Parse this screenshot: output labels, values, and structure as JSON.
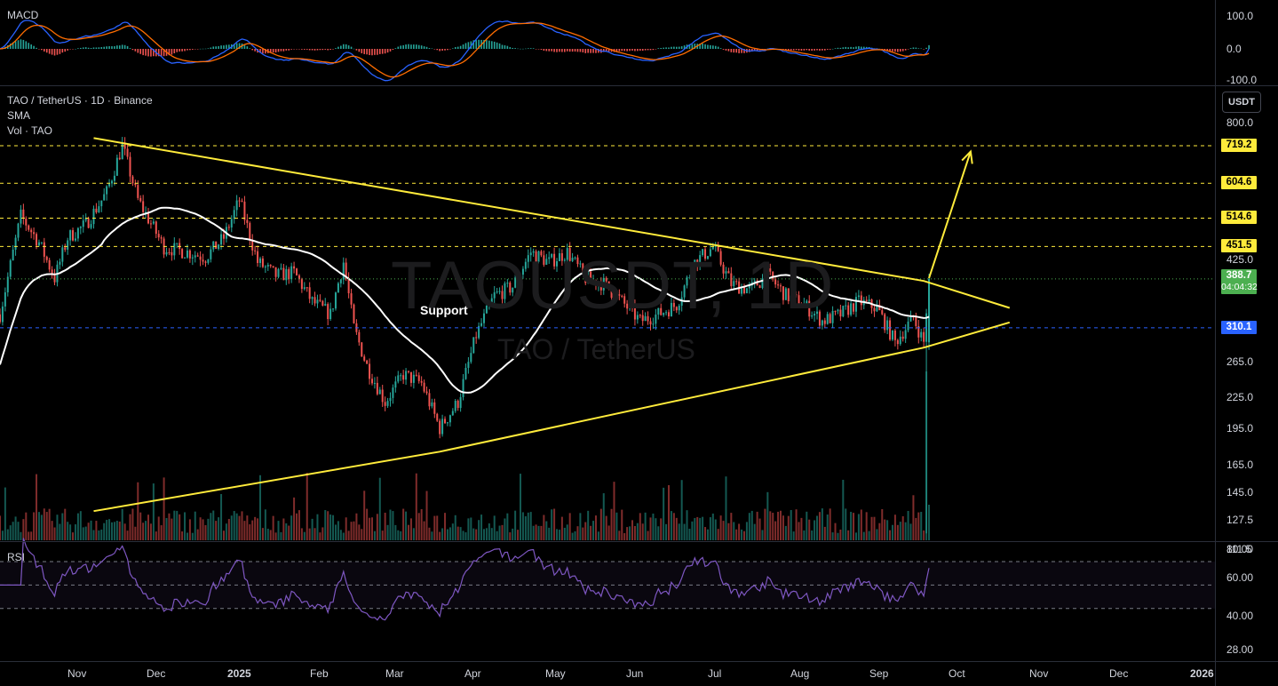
{
  "header": {
    "symbol_line": "TAO / TetherUS · 1D · Binance",
    "indicator_sma": "SMA",
    "indicator_vol": "Vol · TAO",
    "watermark_symbol": "TAOUSDT, 1D",
    "watermark_name": "TAO / TetherUS",
    "currency_button": "USDT"
  },
  "panes": {
    "macd_title": "MACD",
    "rsi_title": "RSI"
  },
  "colors": {
    "up": "#26a69a",
    "down": "#ef5350",
    "trendline": "#ffeb3b",
    "sma": "#ffffff",
    "macd": "#2962ff",
    "signal": "#ff6d00",
    "rsi": "#7e57c2"
  },
  "chart_data": {
    "type": "candlestick",
    "title": "TAO / TetherUS · 1D · Binance",
    "x_ticks": [
      "Nov",
      "Dec",
      "2025",
      "Feb",
      "Mar",
      "Apr",
      "May",
      "Jun",
      "Jul",
      "Aug",
      "Sep",
      "Oct",
      "Nov",
      "Dec",
      "2026"
    ],
    "price_axis": {
      "scale": "log",
      "ticks": [
        "800.0",
        "425.0",
        "265.0",
        "225.0",
        "195.0",
        "165.0",
        "145.0",
        "127.5",
        "111.5"
      ]
    },
    "macd_axis": {
      "ticks": [
        "100.0",
        "0.0",
        "-100.0"
      ]
    },
    "rsi_axis": {
      "ticks": [
        "80.00",
        "60.00",
        "40.00",
        "28.00"
      ]
    },
    "price_levels": [
      {
        "label": "719.2",
        "value": 719.2
      },
      {
        "label": "604.6",
        "value": 604.6
      },
      {
        "label": "514.6",
        "value": 514.6
      },
      {
        "label": "451.5",
        "value": 451.5
      },
      {
        "label": "310.1",
        "value": 310.1
      }
    ],
    "current_price": {
      "label": "388.7",
      "countdown": "04:04:32"
    },
    "annotation_support": "Support",
    "trendlines": {
      "descending": [
        [
          "2024-11-25",
          745
        ],
        [
          "2025-10-10",
          385
        ],
        [
          "2025-11-12",
          340
        ]
      ],
      "ascending": [
        [
          "2024-11-25",
          133
        ],
        [
          "2025-04-07",
          175
        ],
        [
          "2025-10-10",
          283
        ],
        [
          "2025-11-12",
          318
        ]
      ],
      "breakout_arrow": [
        [
          "2025-10-12",
          390
        ],
        [
          "2025-10-28",
          700
        ]
      ]
    },
    "price_path": [
      [
        "2024-10-20",
        330
      ],
      [
        "2024-10-28",
        520
      ],
      [
        "2024-11-04",
        460
      ],
      [
        "2024-11-10",
        390
      ],
      [
        "2024-11-15",
        470
      ],
      [
        "2024-11-22",
        500
      ],
      [
        "2024-11-30",
        580
      ],
      [
        "2024-12-06",
        720
      ],
      [
        "2024-12-12",
        560
      ],
      [
        "2024-12-22",
        450
      ],
      [
        "2024-12-31",
        440
      ],
      [
        "2025-01-07",
        430
      ],
      [
        "2025-01-14",
        470
      ],
      [
        "2025-01-20",
        560
      ],
      [
        "2025-01-27",
        420
      ],
      [
        "2025-02-03",
        395
      ],
      [
        "2025-02-10",
        400
      ],
      [
        "2025-02-17",
        350
      ],
      [
        "2025-02-24",
        330
      ],
      [
        "2025-03-01",
        420
      ],
      [
        "2025-03-05",
        310
      ],
      [
        "2025-03-10",
        260
      ],
      [
        "2025-03-17",
        220
      ],
      [
        "2025-03-24",
        250
      ],
      [
        "2025-03-31",
        240
      ],
      [
        "2025-04-07",
        195
      ],
      [
        "2025-04-14",
        220
      ],
      [
        "2025-04-21",
        300
      ],
      [
        "2025-04-28",
        360
      ],
      [
        "2025-05-05",
        375
      ],
      [
        "2025-05-12",
        440
      ],
      [
        "2025-05-19",
        420
      ],
      [
        "2025-05-26",
        440
      ],
      [
        "2025-06-02",
        390
      ],
      [
        "2025-06-09",
        380
      ],
      [
        "2025-06-16",
        350
      ],
      [
        "2025-06-23",
        320
      ],
      [
        "2025-06-30",
        330
      ],
      [
        "2025-07-07",
        345
      ],
      [
        "2025-07-14",
        420
      ],
      [
        "2025-07-21",
        450
      ],
      [
        "2025-07-28",
        380
      ],
      [
        "2025-08-04",
        370
      ],
      [
        "2025-08-11",
        395
      ],
      [
        "2025-08-18",
        360
      ],
      [
        "2025-08-25",
        345
      ],
      [
        "2025-09-01",
        320
      ],
      [
        "2025-09-08",
        330
      ],
      [
        "2025-09-15",
        350
      ],
      [
        "2025-09-22",
        340
      ],
      [
        "2025-09-29",
        290
      ],
      [
        "2025-10-06",
        325
      ],
      [
        "2025-10-10",
        290
      ],
      [
        "2025-10-12",
        388.7
      ]
    ]
  }
}
